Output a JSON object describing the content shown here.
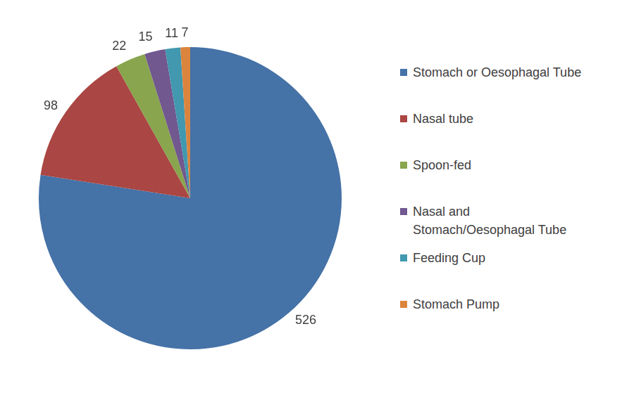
{
  "chart_data": {
    "type": "pie",
    "categories": [
      "Stomach or Oesophagal Tube",
      "Nasal tube",
      "Spoon-fed",
      "Nasal and Stomach/Oesophagal Tube",
      "Feeding Cup",
      "Stomach Pump"
    ],
    "values": [
      526,
      98,
      22,
      15,
      11,
      7
    ],
    "colors": [
      "#4572a7",
      "#aa4643",
      "#89a54e",
      "#71588f",
      "#4198af",
      "#db843d"
    ],
    "legend": "right",
    "data_labels": true
  }
}
